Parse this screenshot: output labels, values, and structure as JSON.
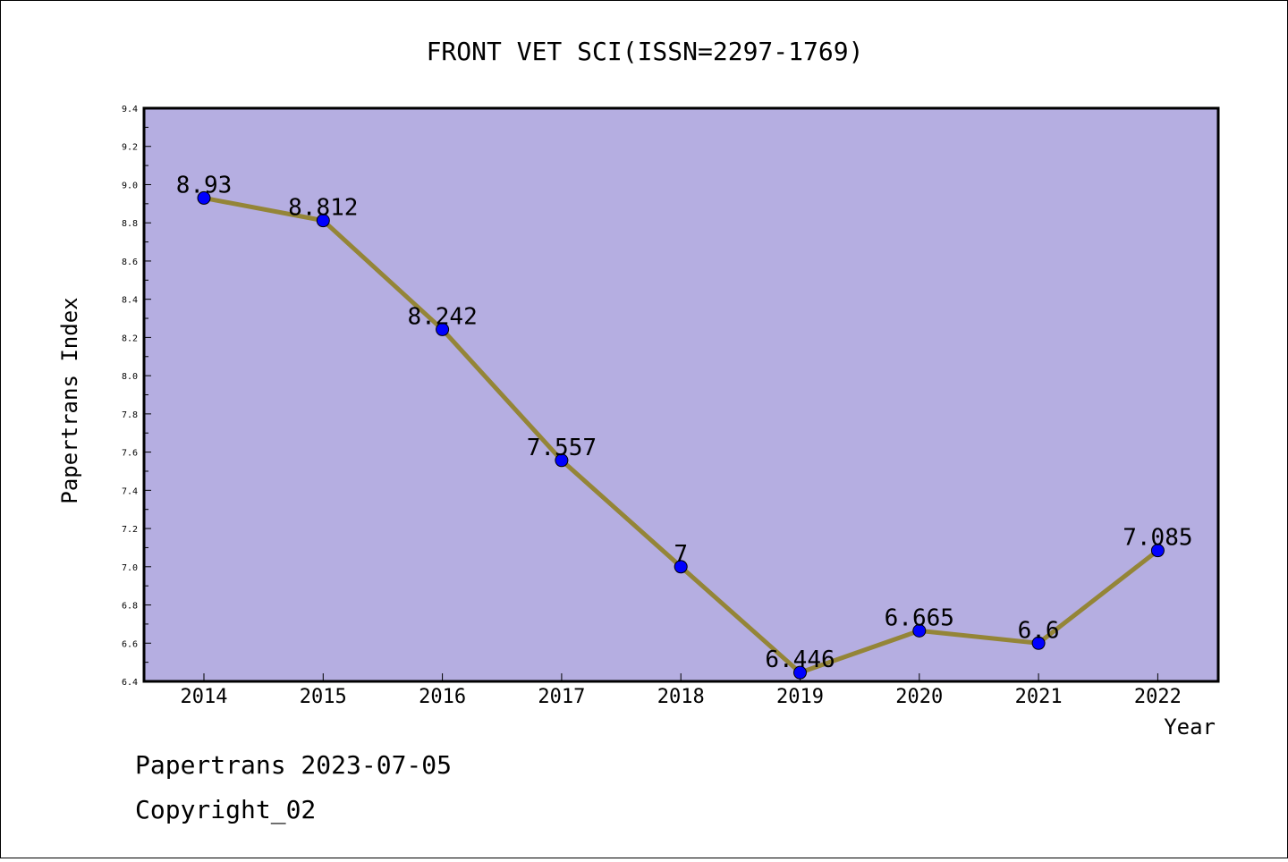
{
  "chart_data": {
    "type": "line",
    "title": "FRONT VET SCI(ISSN=2297-1769)",
    "xlabel": "Year",
    "ylabel": "Papertrans Index",
    "categories": [
      "2014",
      "2015",
      "2016",
      "2017",
      "2018",
      "2019",
      "2020",
      "2021",
      "2022"
    ],
    "series": [
      {
        "values": [
          8.93,
          8.812,
          8.242,
          7.557,
          7,
          6.446,
          6.665,
          6.6,
          7.085
        ],
        "labels": [
          "8.93",
          "8.812",
          "8.242",
          "7.557",
          "7",
          "6.446",
          "6.665",
          "6.6",
          "7.085"
        ]
      }
    ],
    "ylim": [
      6.4,
      9.4
    ],
    "yticks": [
      "6.4",
      "6.6",
      "6.8",
      "7.0",
      "7.2",
      "7.4",
      "7.6",
      "7.8",
      "8.0",
      "8.2",
      "8.4",
      "8.6",
      "8.8",
      "9.0",
      "9.2",
      "9.4"
    ],
    "grid": false,
    "legend": "none",
    "colors": {
      "plot_background": "#b5aee1",
      "line": "#948537",
      "marker": "#0000ff"
    }
  },
  "footer": {
    "line1": "Papertrans 2023-07-05",
    "line2": "Copyright_02"
  }
}
